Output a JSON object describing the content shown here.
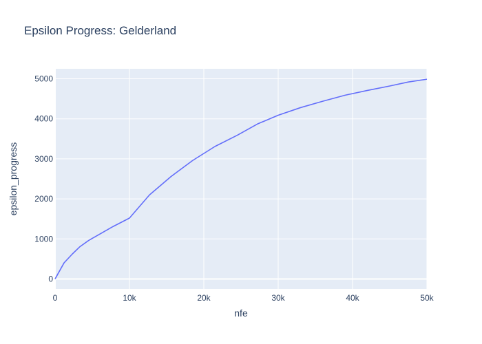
{
  "chart_data": {
    "type": "line",
    "title": "Epsilon Progress: Gelderland",
    "xlabel": "nfe",
    "ylabel": "epsilon_progress",
    "xlim": [
      0,
      50000
    ],
    "ylim": [
      -250,
      5250
    ],
    "x_ticks": [
      0,
      10000,
      20000,
      30000,
      40000,
      50000
    ],
    "x_tick_labels": [
      "0",
      "10k",
      "20k",
      "30k",
      "40k",
      "50k"
    ],
    "y_ticks": [
      0,
      1000,
      2000,
      3000,
      4000,
      5000
    ],
    "y_tick_labels": [
      "0",
      "1000",
      "2000",
      "3000",
      "4000",
      "5000"
    ],
    "grid": true,
    "colors": {
      "plot_bg": "#e5ecf6",
      "grid": "#ffffff",
      "line": "#636efa",
      "text": "#2a3f5f"
    },
    "series": [
      {
        "x": [
          0,
          1200,
          2300,
          3300,
          4500,
          6000,
          7800,
          10000,
          12700,
          15600,
          18500,
          21500,
          24500,
          27200,
          30000,
          33000,
          36000,
          39000,
          42000,
          45000,
          47500,
          50000
        ],
        "y": [
          0,
          400,
          620,
          800,
          960,
          1120,
          1310,
          1520,
          2100,
          2560,
          2960,
          3310,
          3590,
          3870,
          4090,
          4280,
          4440,
          4590,
          4710,
          4820,
          4920,
          4990
        ]
      }
    ]
  }
}
